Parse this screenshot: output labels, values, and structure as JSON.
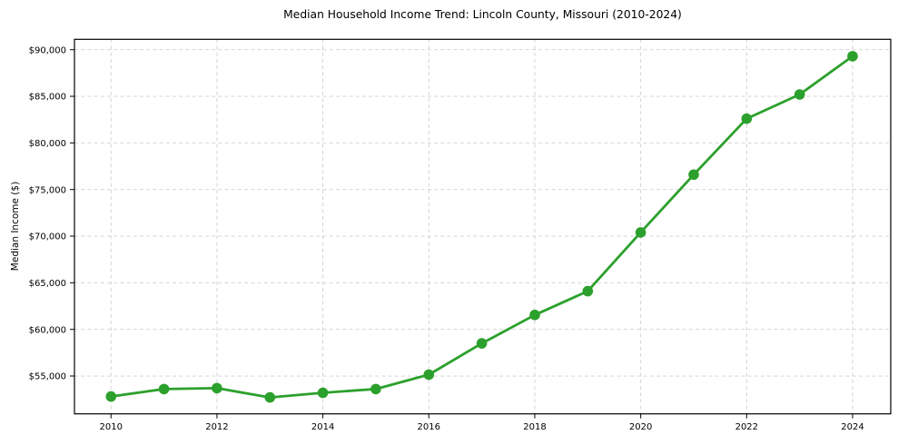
{
  "page": {
    "background_color": "#ffffff",
    "text_color": "#000000"
  },
  "chart_data": {
    "type": "line",
    "title": "Median Household Income Trend: Lincoln County, Missouri (2010-2024)",
    "xlabel": "",
    "ylabel": "Median Income ($)",
    "x": [
      2010,
      2011,
      2012,
      2013,
      2014,
      2015,
      2016,
      2017,
      2018,
      2019,
      2020,
      2021,
      2022,
      2023,
      2024
    ],
    "values": [
      52800,
      53600,
      53700,
      52700,
      53200,
      53600,
      55150,
      58500,
      61550,
      64100,
      70400,
      76600,
      82600,
      85200,
      89300
    ],
    "xticks": [
      2010,
      2012,
      2014,
      2016,
      2018,
      2020,
      2022,
      2024
    ],
    "xtick_labels": [
      "2010",
      "2012",
      "2014",
      "2016",
      "2018",
      "2020",
      "2022",
      "2024"
    ],
    "yticks": [
      55000,
      60000,
      65000,
      70000,
      75000,
      80000,
      85000,
      90000
    ],
    "ytick_labels": [
      "$55,000",
      "$60,000",
      "$65,000",
      "$70,000",
      "$75,000",
      "$80,000",
      "$85,000",
      "$90,000"
    ],
    "xlim": [
      2009.31,
      2024.72
    ],
    "ylim": [
      50940,
      91110
    ],
    "grid": true,
    "grid_style": "dashed",
    "grid_color": "#cfcfcf",
    "line_color": "#2ca02c",
    "marker": "circle",
    "marker_radius": 5.8,
    "legend": false
  }
}
